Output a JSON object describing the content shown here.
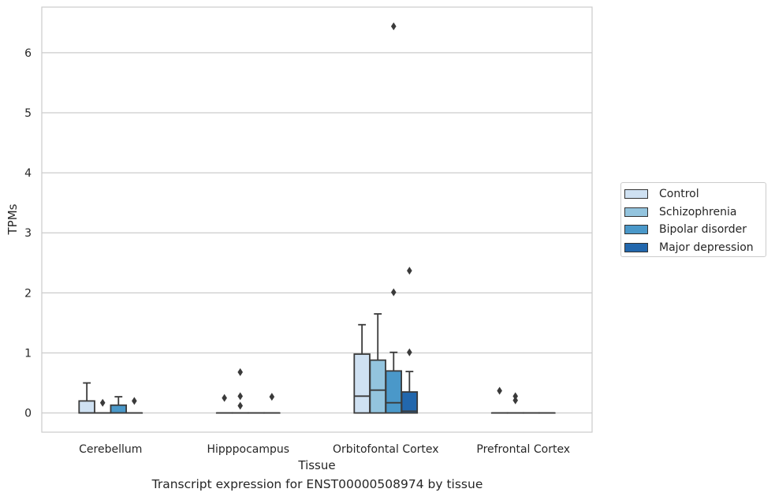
{
  "chart_data": {
    "type": "box",
    "title": "",
    "xlabel": "Tissue",
    "ylabel": "TPMs",
    "ylim": [
      -0.32,
      6.76
    ],
    "yticks": [
      0,
      1,
      2,
      3,
      4,
      5,
      6
    ],
    "grid": true,
    "legend_position": "right",
    "categories": [
      "Cerebellum",
      "Hipppocampus",
      "Orbitofontal Cortex",
      "Prefrontal Cortex"
    ],
    "series": [
      {
        "name": "Control",
        "color": "#cfe1f2",
        "boxes": [
          {
            "q1": 0,
            "median": 0,
            "q3": 0.2,
            "whislo": 0,
            "whishi": 0.5,
            "fliers": []
          },
          {
            "q1": 0,
            "median": 0,
            "q3": 0,
            "whislo": 0,
            "whishi": 0,
            "fliers": [
              0.25
            ]
          },
          {
            "q1": 0,
            "median": 0.28,
            "q3": 0.98,
            "whislo": 0,
            "whishi": 1.47,
            "fliers": []
          },
          {
            "q1": 0,
            "median": 0,
            "q3": 0,
            "whislo": 0,
            "whishi": 0,
            "fliers": [
              0.37
            ]
          }
        ]
      },
      {
        "name": "Schizophrenia",
        "color": "#93c4de",
        "boxes": [
          {
            "q1": 0,
            "median": 0,
            "q3": 0,
            "whislo": 0,
            "whishi": 0,
            "fliers": [
              0.17
            ]
          },
          {
            "q1": 0,
            "median": 0,
            "q3": 0,
            "whislo": 0,
            "whishi": 0,
            "fliers": [
              0.68,
              0.28,
              0.12
            ]
          },
          {
            "q1": 0,
            "median": 0.38,
            "q3": 0.88,
            "whislo": 0,
            "whishi": 1.65,
            "fliers": []
          },
          {
            "q1": 0,
            "median": 0,
            "q3": 0,
            "whislo": 0,
            "whishi": 0,
            "fliers": [
              0.28,
              0.21
            ]
          }
        ]
      },
      {
        "name": "Bipolar disorder",
        "color": "#4a98c9",
        "boxes": [
          {
            "q1": 0,
            "median": 0,
            "q3": 0.13,
            "whislo": 0,
            "whishi": 0.27,
            "fliers": []
          },
          {
            "q1": 0,
            "median": 0,
            "q3": 0,
            "whislo": 0,
            "whishi": 0,
            "fliers": []
          },
          {
            "q1": 0,
            "median": 0.17,
            "q3": 0.7,
            "whislo": 0,
            "whishi": 1.01,
            "fliers": [
              6.44,
              2.01
            ]
          },
          {
            "q1": 0,
            "median": 0,
            "q3": 0,
            "whislo": 0,
            "whishi": 0,
            "fliers": []
          }
        ]
      },
      {
        "name": "Major depression",
        "color": "#2267ad",
        "boxes": [
          {
            "q1": 0,
            "median": 0,
            "q3": 0,
            "whislo": 0,
            "whishi": 0,
            "fliers": [
              0.2
            ]
          },
          {
            "q1": 0,
            "median": 0,
            "q3": 0,
            "whislo": 0,
            "whishi": 0,
            "fliers": [
              0.27
            ]
          },
          {
            "q1": 0,
            "median": 0.03,
            "q3": 0.35,
            "whislo": 0,
            "whishi": 0.69,
            "fliers": [
              2.37,
              1.01
            ]
          },
          {
            "q1": 0,
            "median": 0,
            "q3": 0,
            "whislo": 0,
            "whishi": 0,
            "fliers": []
          }
        ]
      }
    ],
    "caption": "Transcript expression for ENST00000508974 by tissue"
  }
}
